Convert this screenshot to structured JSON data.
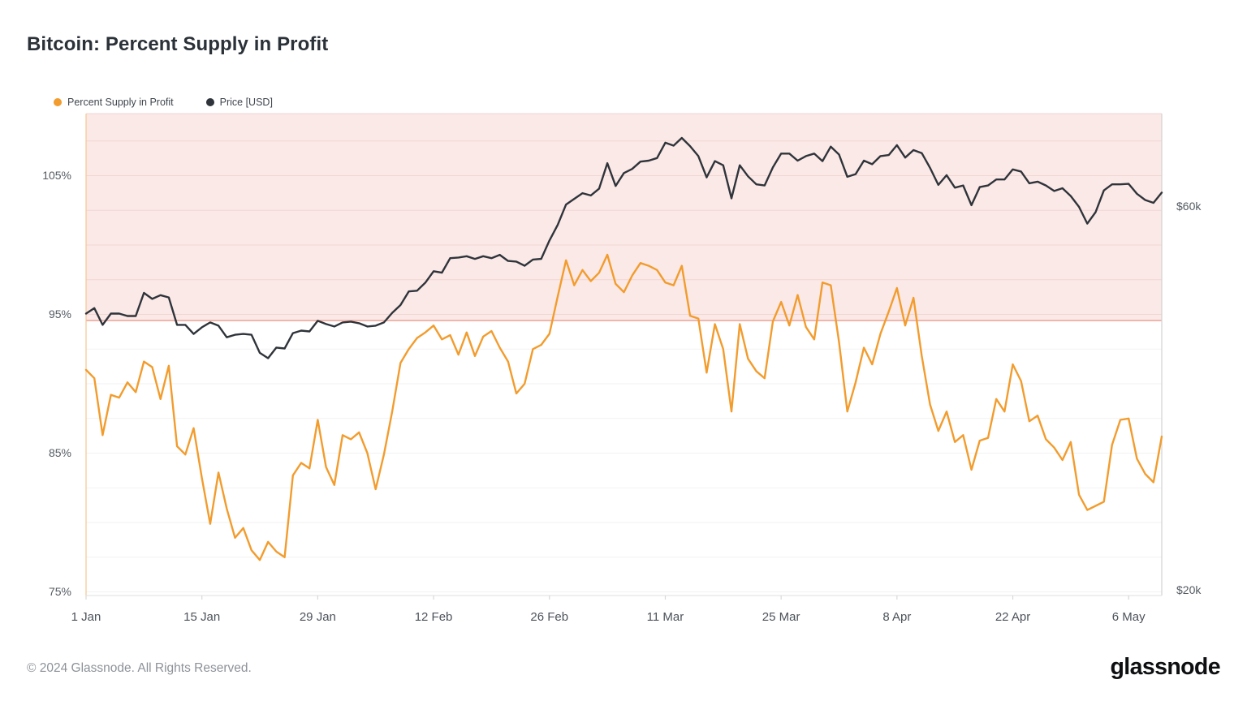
{
  "page": {
    "title": "Bitcoin: Percent Supply in Profit"
  },
  "legend": [
    {
      "label": "Percent Supply in Profit",
      "color": "#f29c2d"
    },
    {
      "label": "Price [USD]",
      "color": "#2f343a"
    }
  ],
  "footer": {
    "copyright": "© 2024 Glassnode. All Rights Reserved.",
    "brand": "glassnode"
  },
  "chart_data": {
    "type": "line",
    "title": "Bitcoin: Percent Supply in Profit",
    "x_start_label": "1 Jan",
    "x_end_label": "6 May",
    "x_ticks": [
      {
        "label": "1 Jan",
        "day": 0
      },
      {
        "label": "15 Jan",
        "day": 14
      },
      {
        "label": "29 Jan",
        "day": 28
      },
      {
        "label": "12 Feb",
        "day": 42
      },
      {
        "label": "26 Feb",
        "day": 56
      },
      {
        "label": "11 Mar",
        "day": 70
      },
      {
        "label": "25 Mar",
        "day": 84
      },
      {
        "label": "8 Apr",
        "day": 98
      },
      {
        "label": "22 Apr",
        "day": 112
      },
      {
        "label": "6 May",
        "day": 126
      }
    ],
    "y_left_axis": {
      "unit": "%",
      "scale": "linear",
      "ticks": [
        {
          "label": "105%",
          "value": 105
        },
        {
          "label": "95%",
          "value": 95
        },
        {
          "label": "85%",
          "value": 85
        },
        {
          "label": "75%",
          "value": 75
        }
      ],
      "gridline_step": 2.5,
      "visible_range": [
        74.7,
        109.4
      ]
    },
    "y_right_axis": {
      "unit": "USD thousands",
      "scale": "log",
      "ticks": [
        {
          "label": "$60k",
          "value": 60
        },
        {
          "label": "$20k",
          "value": 20
        }
      ],
      "visible_range": [
        19.7,
        78.4
      ]
    },
    "highlight_zone": {
      "description": "shaded band above ~94.5% supply in profit",
      "above_percent": 94.56,
      "fill": "#fbe9e7",
      "border_color": "#efa79d"
    },
    "series": [
      {
        "name": "Percent Supply in Profit",
        "axis": "left",
        "unit": "%",
        "color": "#f29c2d",
        "values": [
          91.0,
          90.4,
          86.3,
          89.2,
          89.0,
          90.1,
          89.4,
          91.6,
          91.2,
          88.9,
          91.3,
          85.5,
          84.9,
          86.8,
          83.2,
          79.9,
          83.6,
          81.0,
          78.9,
          79.6,
          78.0,
          77.3,
          78.6,
          77.9,
          77.5,
          83.4,
          84.3,
          83.9,
          87.4,
          84.0,
          82.7,
          86.3,
          86.0,
          86.5,
          85.0,
          82.4,
          84.9,
          88.0,
          91.5,
          92.5,
          93.3,
          93.7,
          94.2,
          93.2,
          93.5,
          92.1,
          93.7,
          92.0,
          93.4,
          93.8,
          92.6,
          91.6,
          89.3,
          90.0,
          92.5,
          92.8,
          93.6,
          96.3,
          98.9,
          97.1,
          98.2,
          97.4,
          98.0,
          99.3,
          97.2,
          96.6,
          97.8,
          98.7,
          98.5,
          98.2,
          97.3,
          97.1,
          98.5,
          94.9,
          94.7,
          90.8,
          94.3,
          92.5,
          88.0,
          94.3,
          91.8,
          90.9,
          90.4,
          94.5,
          95.9,
          94.2,
          96.4,
          94.1,
          93.2,
          97.3,
          97.1,
          93.0,
          88.0,
          90.1,
          92.6,
          91.4,
          93.6,
          95.2,
          96.9,
          94.2,
          96.2,
          92.0,
          88.5,
          86.6,
          88.0,
          85.8,
          86.3,
          83.8,
          85.9,
          86.1,
          88.9,
          88.0,
          91.4,
          90.2,
          87.3,
          87.7,
          86.0,
          85.4,
          84.5,
          85.8,
          82.0,
          80.9,
          81.2,
          81.5,
          85.6,
          87.4,
          87.5,
          84.6,
          83.5,
          82.9,
          86.2
        ]
      },
      {
        "name": "Price [USD]",
        "axis": "right",
        "unit": "USD thousands",
        "color": "#2f343a",
        "values": [
          44.2,
          44.9,
          42.8,
          44.2,
          44.2,
          43.9,
          43.9,
          46.9,
          46.1,
          46.6,
          46.3,
          42.8,
          42.8,
          41.7,
          42.5,
          43.1,
          42.7,
          41.3,
          41.6,
          41.7,
          41.6,
          39.5,
          38.9,
          40.1,
          40.0,
          41.8,
          42.1,
          42.0,
          43.3,
          42.9,
          42.6,
          43.1,
          43.2,
          43.0,
          42.6,
          42.7,
          43.1,
          44.3,
          45.3,
          47.1,
          47.2,
          48.3,
          49.9,
          49.7,
          51.8,
          51.9,
          52.1,
          51.7,
          52.1,
          51.8,
          52.3,
          51.4,
          51.3,
          50.7,
          51.6,
          51.7,
          54.5,
          57.0,
          60.4,
          61.4,
          62.4,
          62.0,
          63.2,
          68.0,
          63.7,
          66.1,
          66.9,
          68.3,
          68.5,
          69.0,
          72.1,
          71.5,
          73.1,
          71.4,
          69.4,
          65.3,
          68.4,
          67.6,
          61.5,
          67.6,
          65.5,
          64.0,
          63.8,
          67.2,
          69.9,
          69.9,
          68.5,
          69.4,
          69.9,
          68.4,
          71.3,
          69.7,
          65.4,
          65.9,
          68.5,
          67.8,
          69.4,
          69.6,
          71.6,
          69.1,
          70.6,
          70.0,
          67.1,
          63.9,
          65.7,
          63.4,
          63.8,
          60.3,
          63.5,
          63.8,
          64.9,
          64.9,
          66.8,
          66.4,
          64.2,
          64.5,
          63.8,
          62.8,
          63.3,
          61.9,
          60.0,
          57.2,
          59.1,
          62.9,
          64.0,
          64.0,
          64.1,
          62.3,
          61.2,
          60.7,
          62.5
        ]
      }
    ]
  }
}
